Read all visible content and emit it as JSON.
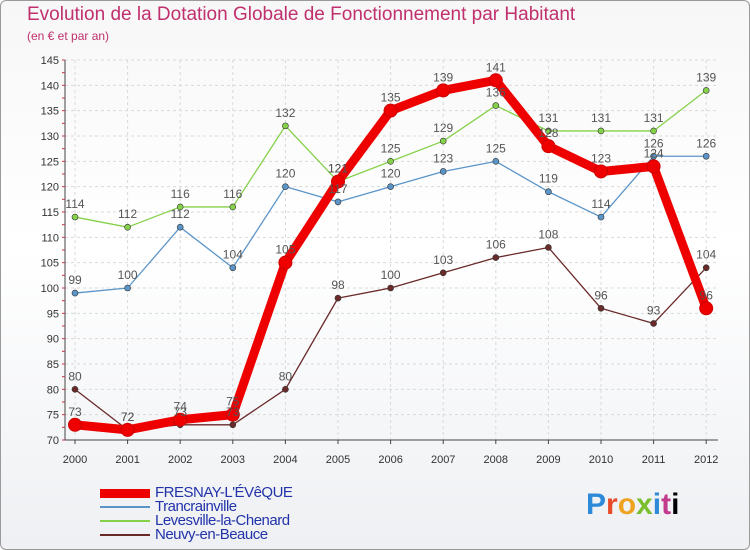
{
  "title": "Evolution de la Dotation Globale de Fonctionnement par Habitant",
  "subtitle": "(en € et par an)",
  "logo_text": "Proxiti",
  "chart_data": {
    "type": "line",
    "x": [
      "2000",
      "2001",
      "2002",
      "2003",
      "2004",
      "2005",
      "2006",
      "2007",
      "2008",
      "2009",
      "2010",
      "2011",
      "2012"
    ],
    "ylim": [
      70,
      145
    ],
    "y_ticks": [
      70,
      75,
      80,
      85,
      90,
      95,
      100,
      105,
      110,
      115,
      120,
      125,
      130,
      135,
      140,
      145
    ],
    "grid": true,
    "legend_position": "bottom-left",
    "series": [
      {
        "name": "FRESNAY-L'ÉVêQUE",
        "color": "#ee0000",
        "width": 9,
        "values": [
          73,
          72,
          74,
          75,
          105,
          121,
          135,
          139,
          141,
          128,
          123,
          124,
          96
        ],
        "labels": [
          "73",
          "72",
          "74",
          "75",
          "105",
          "121",
          "135",
          "139",
          "141",
          "128",
          "123",
          "124",
          "96"
        ]
      },
      {
        "name": "Trancrainville",
        "color": "#5b95c8",
        "width": 1.3,
        "values": [
          99,
          100,
          112,
          104,
          120,
          117,
          120,
          123,
          125,
          119,
          114,
          126,
          126
        ],
        "labels": [
          "99",
          "100",
          "112",
          "104",
          "120",
          "117",
          "120",
          "123",
          "125",
          "119",
          "114",
          "126",
          "126"
        ]
      },
      {
        "name": "Levesville-la-Chenard",
        "color": "#86d14a",
        "width": 1.3,
        "values": [
          114,
          112,
          116,
          116,
          132,
          121,
          125,
          129,
          136,
          131,
          131,
          131,
          139
        ],
        "labels": [
          "114",
          "112",
          "116",
          "116",
          "132",
          "121",
          "125",
          "129",
          "136",
          "131",
          "131",
          "131",
          "139"
        ]
      },
      {
        "name": "Neuvy-en-Beauce",
        "color": "#6b2a2a",
        "width": 1.3,
        "values": [
          80,
          72,
          73,
          73,
          80,
          98,
          100,
          103,
          106,
          108,
          96,
          93,
          104
        ],
        "labels": [
          "80",
          "72",
          "73",
          "73",
          "80",
          "98",
          "100",
          "103",
          "106",
          "108",
          "96",
          "93",
          "104"
        ]
      }
    ]
  }
}
